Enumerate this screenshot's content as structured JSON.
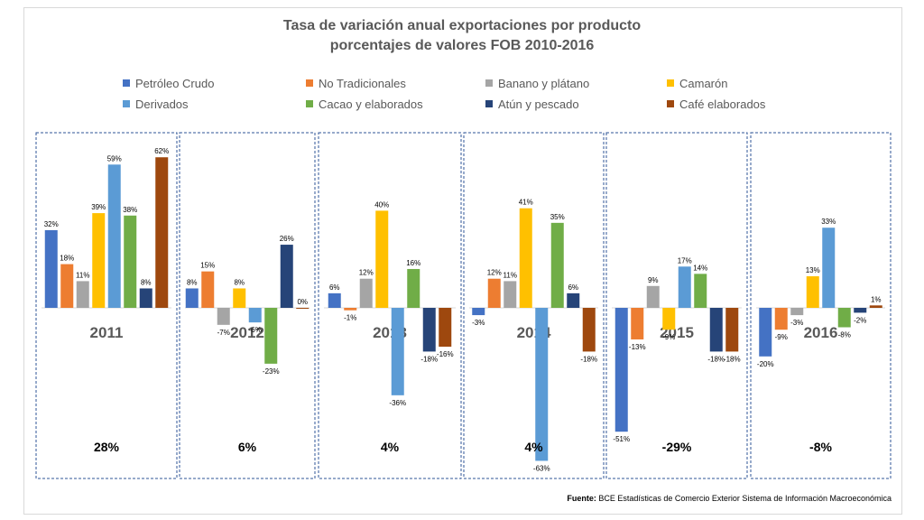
{
  "chart_data": {
    "type": "bar",
    "title": "Tasa de variación anual exportaciones por producto",
    "subtitle": "porcentajes de valores FOB 2010-2016",
    "categories": [
      "2011",
      "2012",
      "2013",
      "2014",
      "2015",
      "2016"
    ],
    "totals": [
      "28%",
      "6%",
      "4%",
      "4%",
      "-29%",
      "-8%"
    ],
    "series": [
      {
        "name": "Petróleo Crudo",
        "color": "#4472c4",
        "values": [
          32,
          8,
          6,
          -3,
          -51,
          -20
        ]
      },
      {
        "name": "No Tradicionales",
        "color": "#ed7d31",
        "values": [
          18,
          15,
          -1,
          12,
          -13,
          -9
        ]
      },
      {
        "name": "Banano y plátano",
        "color": "#a5a5a5",
        "values": [
          11,
          -7,
          12,
          11,
          9,
          -3
        ]
      },
      {
        "name": "Camarón",
        "color": "#ffc000",
        "values": [
          39,
          8,
          40,
          41,
          -9,
          13
        ]
      },
      {
        "name": "Derivados",
        "color": "#5b9bd5",
        "values": [
          59,
          -6,
          -36,
          -63,
          17,
          33
        ]
      },
      {
        "name": "Cacao y elaborados",
        "color": "#70ad47",
        "values": [
          38,
          -23,
          16,
          35,
          14,
          -8
        ]
      },
      {
        "name": "Atún y pescado",
        "color": "#264478",
        "values": [
          8,
          26,
          -18,
          6,
          -18,
          -2
        ]
      },
      {
        "name": "Café elaborados",
        "color": "#9e480e",
        "values": [
          62,
          0,
          -16,
          -18,
          -18,
          1
        ]
      }
    ],
    "value_suffix": "%",
    "grid": false,
    "legend_position": "top"
  },
  "source": {
    "label": "Fuente:",
    "text": "BCE Estadísticas de Comercio Exterior Sistema de Información Macroeconómica"
  }
}
